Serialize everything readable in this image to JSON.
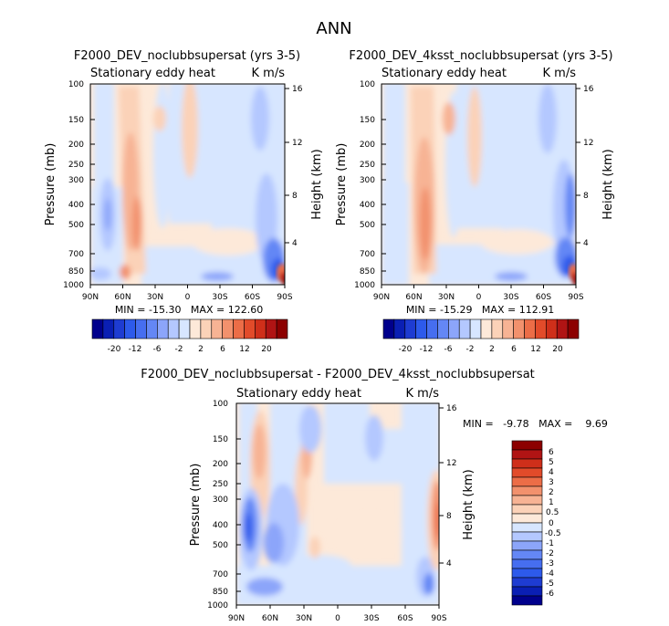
{
  "page_title": "ANN",
  "colors": {
    "neg": [
      "#00008c",
      "#0a1fb4",
      "#1e3cd2",
      "#2d5aeb",
      "#466ef0",
      "#6487f5",
      "#8ca5fa",
      "#b4c8ff",
      "#d7e6ff"
    ],
    "pos": [
      "#fde9d9",
      "#fbd2b8",
      "#f7b394",
      "#f2916d",
      "#ec6d47",
      "#e24b2a",
      "#cf2f1a",
      "#b01414",
      "#8c0000"
    ]
  },
  "chart_data": [
    {
      "type": "contour",
      "title": "F2000_DEV_noclubbsupersat (yrs 3-5)",
      "left_string": "Stationary eddy heat",
      "right_string": "K m/s",
      "ylabel": "Pressure (mb)",
      "ylabel_right": "Height (km)",
      "x_ticks": [
        "90N",
        "60N",
        "30N",
        "0",
        "30S",
        "60S",
        "90S"
      ],
      "y_ticks": [
        "100",
        "150",
        "200",
        "250",
        "300",
        "400",
        "500",
        "700",
        "850",
        "1000"
      ],
      "y_right_ticks": [
        "16",
        "12",
        "8",
        "4"
      ],
      "stats": "MIN = -15.30   MAX = 122.60",
      "colorbar_labels": [
        "-20",
        "-12",
        "-6",
        "-2",
        "2",
        "6",
        "12",
        "20"
      ]
    },
    {
      "type": "contour",
      "title": "F2000_DEV_4ksst_noclubbsupersat (yrs 3-5)",
      "left_string": "Stationary eddy heat",
      "right_string": "K m/s",
      "ylabel": "Pressure (mb)",
      "ylabel_right": "Height (km)",
      "x_ticks": [
        "90N",
        "60N",
        "30N",
        "0",
        "30S",
        "60S",
        "90S"
      ],
      "y_ticks": [
        "100",
        "150",
        "200",
        "250",
        "300",
        "400",
        "500",
        "700",
        "850",
        "1000"
      ],
      "y_right_ticks": [
        "16",
        "12",
        "8",
        "4"
      ],
      "stats": "MIN = -15.29   MAX = 112.91",
      "colorbar_labels": [
        "-20",
        "-12",
        "-6",
        "-2",
        "2",
        "6",
        "12",
        "20"
      ]
    },
    {
      "type": "contour",
      "title": "F2000_DEV_noclubbsupersat - F2000_DEV_4ksst_noclubbsupersat",
      "left_string": "Stationary eddy heat",
      "right_string": "K m/s",
      "ylabel": "Pressure (mb)",
      "ylabel_right": "Height (km)",
      "x_ticks": [
        "90N",
        "60N",
        "30N",
        "0",
        "30S",
        "60S",
        "90S"
      ],
      "y_ticks": [
        "100",
        "150",
        "200",
        "250",
        "300",
        "400",
        "500",
        "700",
        "850",
        "1000"
      ],
      "y_right_ticks": [
        "16",
        "12",
        "8",
        "4"
      ],
      "stats": "MIN =   -9.78   MAX =    9.69",
      "colorbar_labels": [
        "6",
        "5",
        "4",
        "3",
        "2",
        "1",
        "0.5",
        "0",
        "-0.5",
        "-1",
        "-2",
        "-3",
        "-4",
        "-5",
        "-6"
      ]
    }
  ]
}
